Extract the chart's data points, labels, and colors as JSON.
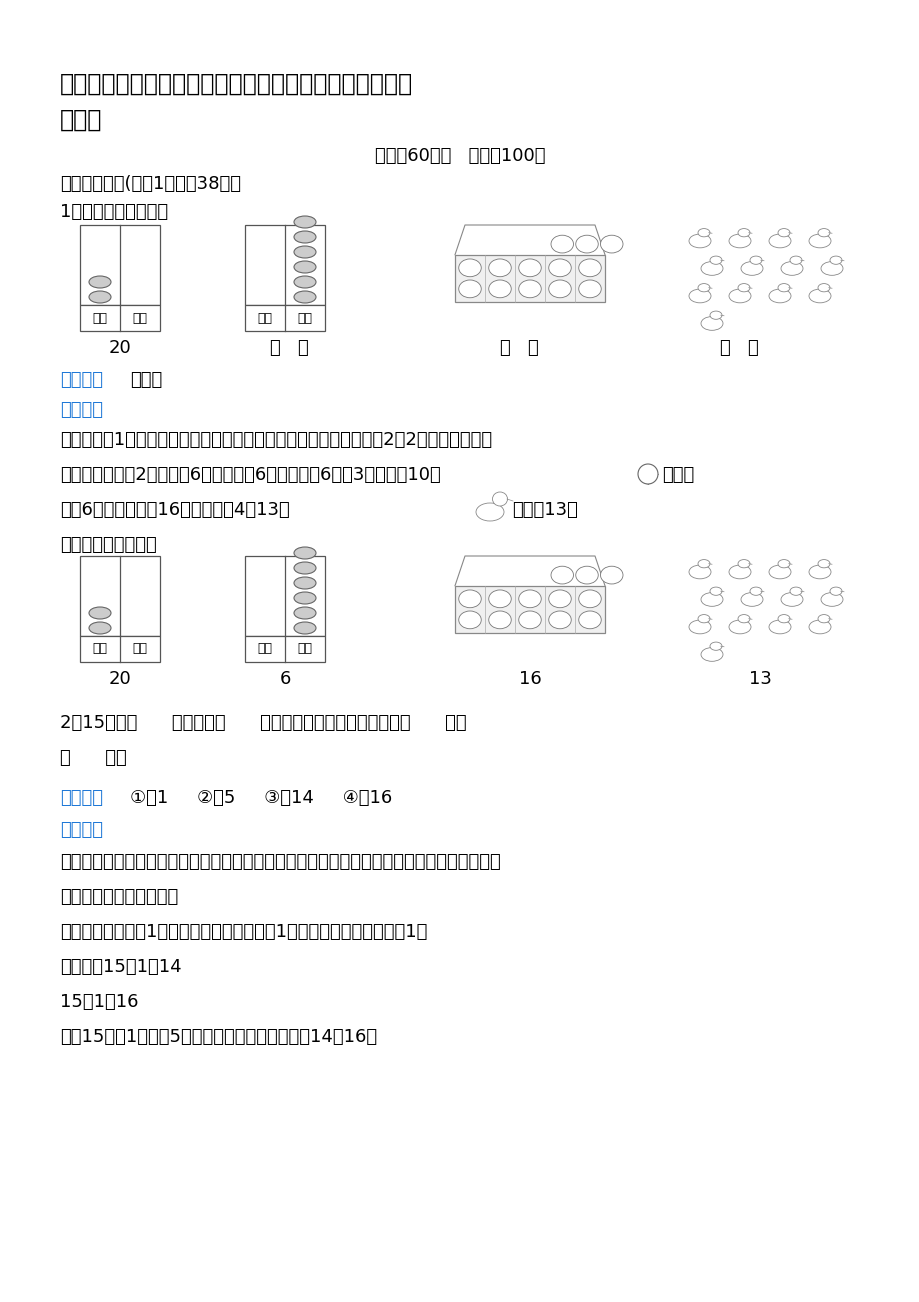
{
  "title_line1": "浙江省台州市椒江区人教版小学一年级上册数学期末试题",
  "title_line2": "及答案",
  "time_score": "时间：60分钟   分数：100分",
  "section1": "一、我会填。(每空1分，共38分）",
  "q1_label": "1．画一画、写一写。",
  "answer_text": "见详解",
  "fenxi_text1": "【分析】图1用计数器表示数时，哪一位是几就拨几颗珠子。十位是2画2颗珠子，个位上",
  "fenxi_text2": "没有就不画；图2个位上有6颗珠子表示6个一，写作6；图3盒子里有10个",
  "fenxi_text2b": "，盒子",
  "fenxi_text3": "外有6个，合起来有16（个）；图4有13只",
  "fenxi_text3b": "，写作13。",
  "xiangjie_label": "【详解】由分析得：",
  "q2_text": "2．15是由（      ）个十和（      ）个一组成，与它相邻的数是（      ）和",
  "q2_text2": "（      ）。",
  "q2_answer_text": "①．1     ②．5     ③．14     ④．16",
  "q2_fenxi1": "【分析】一个两位数，从右往左数，第一位是个位，个位上的数表示几个一；第二位是十位，",
  "q2_fenxi2": "十位上的数表示几个十。",
  "q2_fenxi3": "相邻的两个数相差1，左边的数比右边的数小1；右边的数比左边的数大1。",
  "q2_xiangjie": "【详解】15－1＝14",
  "q2_detail2": "15＋1＝16",
  "q2_detail3": "故，15是由1个十和5个一组成，与它相邻的数是14和16。",
  "bg_color": "#ffffff",
  "text_color": "#000000",
  "blue_color": "#1e78d7"
}
